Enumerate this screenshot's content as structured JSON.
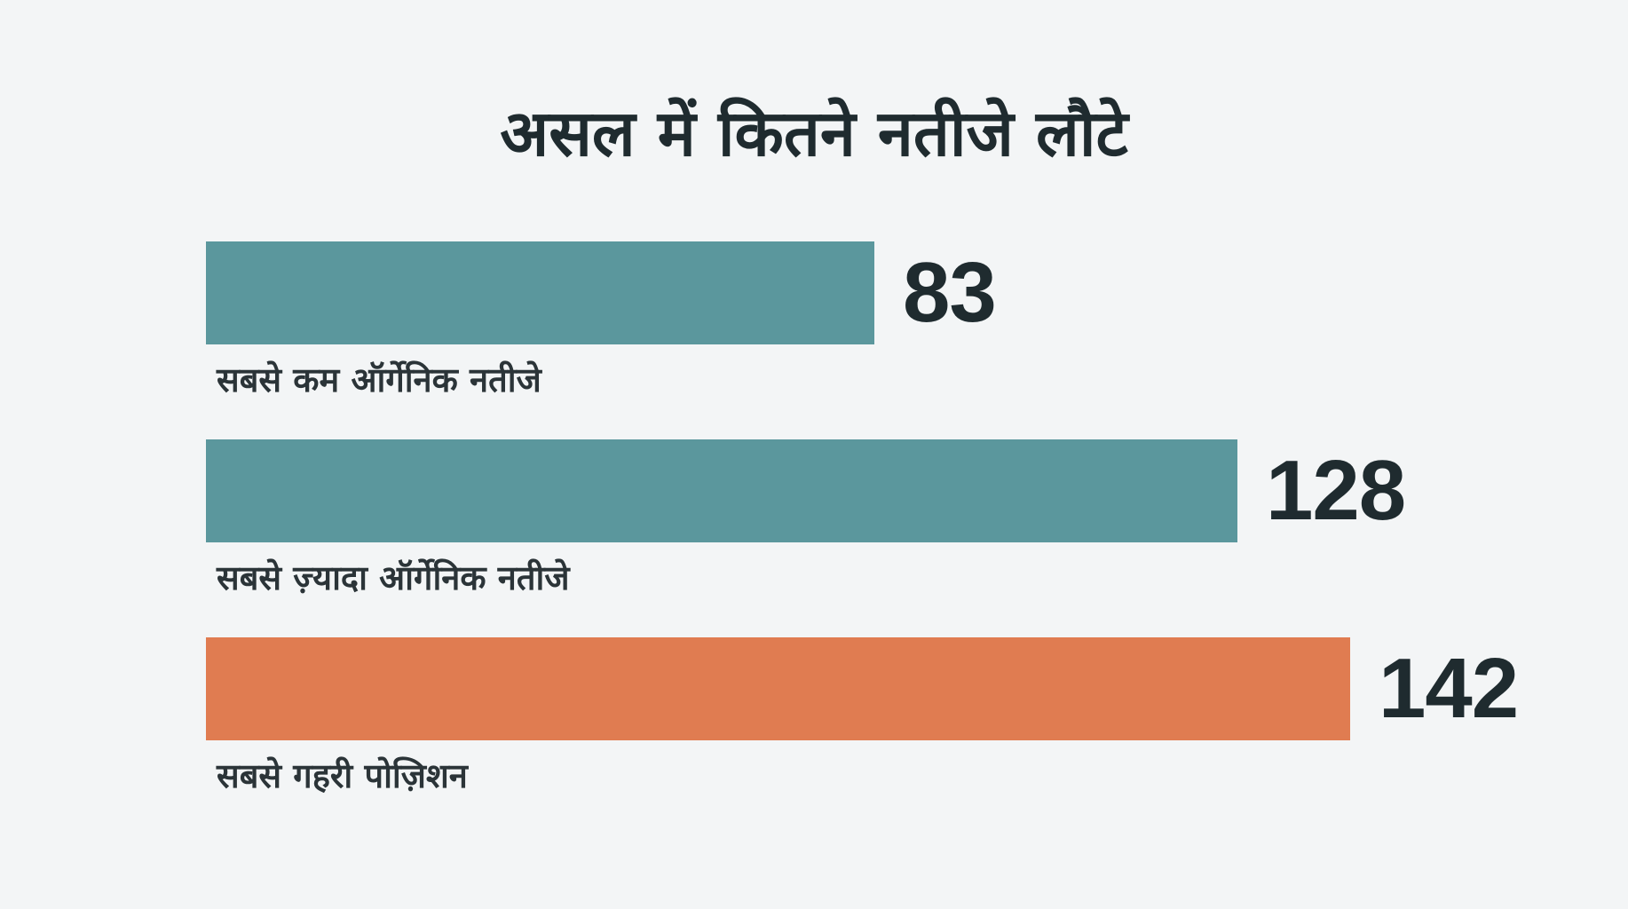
{
  "chart_data": {
    "type": "bar",
    "orientation": "horizontal",
    "title": "असल में कितने नतीजे लौटे",
    "categories": [
      "सबसे कम ऑर्गेनिक नतीजे",
      "सबसे ज़्यादा ऑर्गेनिक नतीजे",
      "सबसे गहरी पोज़िशन"
    ],
    "values": [
      83,
      128,
      142
    ],
    "value_labels": [
      "83",
      "128",
      "142"
    ],
    "colors": [
      "#5b979d",
      "#5b979d",
      "#e07c51"
    ],
    "xlim": [
      0,
      142
    ],
    "grid": false,
    "legend": "none"
  }
}
